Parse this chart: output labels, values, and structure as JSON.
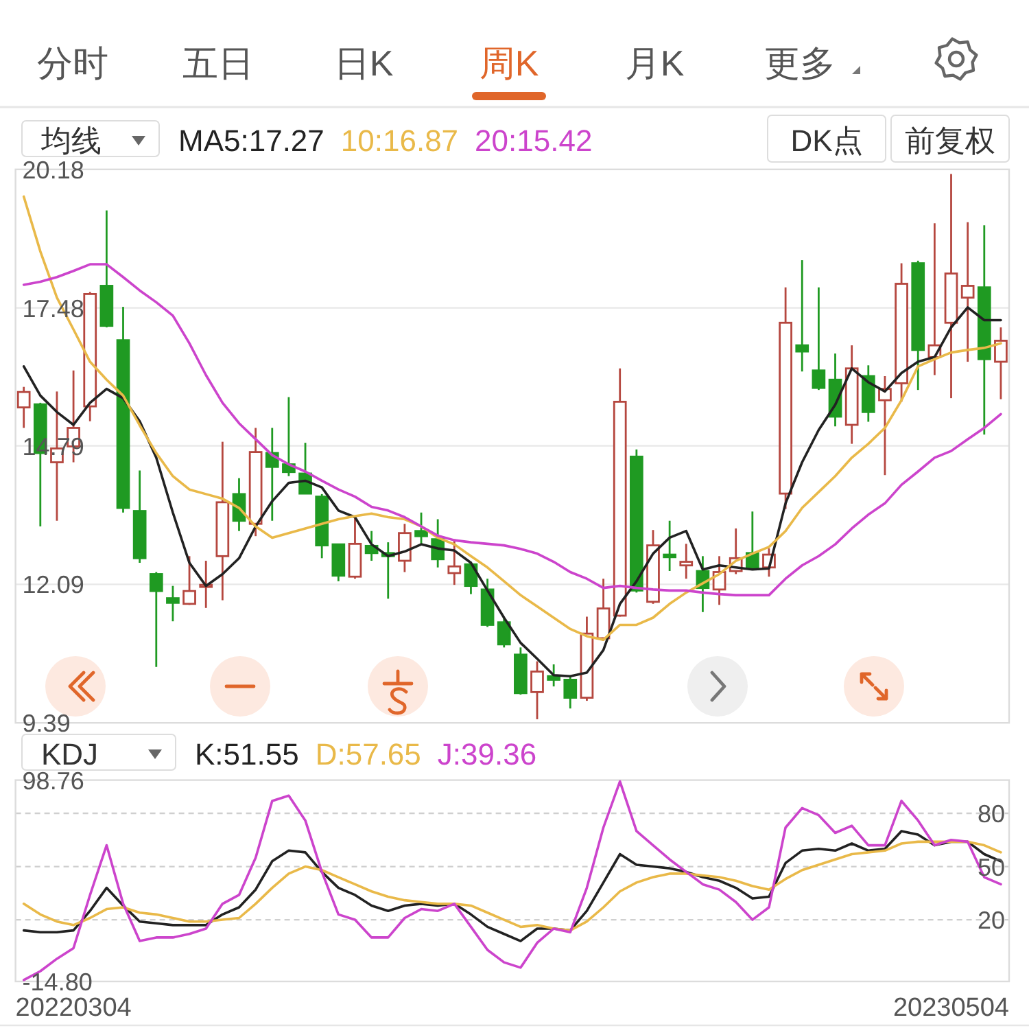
{
  "chart_data": [
    {
      "type": "other",
      "annotations": [
        "分时",
        "五日",
        "日K",
        "周K",
        "月K",
        "更多"
      ]
    },
    {
      "type": "candlestick",
      "legend": "top",
      "legend_title": "均线",
      "tick_labels": "y",
      "grid": "y",
      "annotations": [
        "DK点",
        "前复权"
      ],
      "categories": [
        null,
        null,
        null,
        null,
        null,
        null,
        null,
        null,
        null,
        null,
        null,
        null,
        null,
        null,
        null,
        null,
        null,
        null,
        null,
        null,
        null,
        null,
        null,
        null,
        null,
        null,
        null,
        null,
        null,
        null,
        null,
        null,
        null,
        null,
        null,
        null,
        null,
        null,
        null,
        null,
        null,
        null,
        null,
        null,
        null,
        null,
        null,
        null,
        null,
        null,
        null,
        null,
        null,
        null,
        null,
        null,
        null,
        null,
        null,
        null
      ],
      "ylim": [
        9.39,
        20.18
      ],
      "yticks": [
        20.18,
        17.48,
        14.79,
        12.09,
        9.39
      ],
      "ohlc": [
        [
          15.54,
          15.94,
          15.14,
          15.84
        ],
        [
          15.6,
          15.63,
          13.22,
          14.65
        ],
        [
          14.47,
          15.85,
          13.33,
          14.74
        ],
        [
          14.78,
          16.26,
          14.47,
          15.14
        ],
        [
          15.56,
          17.79,
          15.27,
          17.75
        ],
        [
          17.91,
          19.38,
          17.1,
          17.13
        ],
        [
          16.85,
          17.5,
          13.49,
          13.58
        ],
        [
          13.52,
          14.31,
          12.51,
          12.6
        ],
        [
          12.29,
          12.33,
          10.48,
          11.96
        ],
        [
          11.82,
          12.06,
          11.37,
          11.73
        ],
        [
          11.71,
          12.64,
          11.69,
          11.96
        ],
        [
          12.04,
          12.55,
          11.63,
          12.08
        ],
        [
          12.64,
          14.87,
          11.78,
          13.69
        ],
        [
          13.85,
          14.16,
          13.13,
          13.33
        ],
        [
          13.27,
          15.14,
          13.03,
          14.67
        ],
        [
          14.65,
          15.14,
          13.33,
          14.38
        ],
        [
          14.43,
          15.74,
          14.2,
          14.28
        ],
        [
          14.25,
          14.85,
          13.85,
          13.86
        ],
        [
          13.8,
          13.85,
          12.6,
          12.85
        ],
        [
          12.87,
          12.88,
          12.15,
          12.26
        ],
        [
          12.24,
          13.4,
          12.2,
          12.88
        ],
        [
          12.84,
          13.13,
          12.55,
          12.7
        ],
        [
          12.7,
          12.91,
          11.81,
          12.64
        ],
        [
          12.55,
          13.27,
          12.33,
          13.09
        ],
        [
          13.13,
          13.49,
          12.87,
          13.03
        ],
        [
          12.97,
          13.36,
          12.42,
          12.58
        ],
        [
          12.31,
          12.97,
          12.08,
          12.44
        ],
        [
          12.48,
          12.53,
          11.9,
          12.06
        ],
        [
          11.99,
          12.2,
          11.26,
          11.3
        ],
        [
          11.35,
          11.44,
          10.86,
          10.92
        ],
        [
          10.72,
          10.86,
          9.94,
          9.97
        ],
        [
          9.99,
          10.59,
          9.46,
          10.39
        ],
        [
          10.3,
          10.53,
          10.1,
          10.23
        ],
        [
          10.23,
          10.3,
          9.67,
          9.88
        ],
        [
          9.88,
          11.46,
          9.82,
          11.13
        ],
        [
          11.04,
          12.2,
          10.99,
          11.62
        ],
        [
          11.48,
          16.3,
          11.46,
          15.65
        ],
        [
          14.58,
          14.72,
          11.93,
          11.97
        ],
        [
          11.75,
          13.15,
          11.71,
          12.85
        ],
        [
          12.67,
          13.33,
          12.35,
          12.62
        ],
        [
          12.46,
          12.88,
          12.2,
          12.53
        ],
        [
          12.35,
          12.64,
          11.55,
          12.02
        ],
        [
          11.99,
          12.64,
          11.69,
          12.33
        ],
        [
          12.35,
          13.18,
          12.29,
          12.6
        ],
        [
          12.7,
          13.51,
          12.38,
          12.42
        ],
        [
          12.42,
          12.79,
          12.24,
          12.67
        ],
        [
          13.86,
          17.88,
          13.56,
          17.19
        ],
        [
          16.75,
          18.41,
          16.24,
          16.63
        ],
        [
          16.26,
          17.88,
          15.88,
          15.92
        ],
        [
          16.08,
          16.59,
          15.17,
          15.36
        ],
        [
          15.2,
          16.75,
          14.83,
          16.3
        ],
        [
          16.15,
          16.36,
          15.26,
          15.45
        ],
        [
          15.68,
          16.15,
          14.22,
          15.9
        ],
        [
          16.01,
          18.35,
          15.65,
          17.95
        ],
        [
          18.35,
          18.4,
          15.88,
          16.66
        ],
        [
          16.52,
          19.13,
          16.17,
          16.75
        ],
        [
          17.19,
          20.09,
          15.72,
          18.15
        ],
        [
          17.68,
          19.15,
          16.43,
          17.91
        ],
        [
          17.88,
          19.09,
          15.01,
          16.48
        ],
        [
          16.43,
          17.1,
          15.7,
          16.84
        ]
      ],
      "series": [
        {
          "name": "MA5:17.27",
          "type": "line",
          "color": "#222222",
          "values": [
            16.34,
            15.77,
            15.45,
            15.2,
            15.63,
            15.9,
            15.72,
            15.27,
            14.56,
            13.49,
            12.51,
            12.06,
            12.29,
            12.6,
            13.22,
            13.71,
            14.07,
            14.11,
            13.98,
            13.53,
            13.4,
            12.87,
            12.64,
            12.73,
            12.87,
            12.79,
            12.75,
            12.51,
            11.97,
            11.44,
            10.95,
            10.64,
            10.32,
            10.3,
            10.37,
            10.81,
            11.71,
            12.15,
            12.69,
            13.0,
            13.13,
            12.38,
            12.46,
            12.42,
            12.38,
            12.4,
            13.67,
            14.47,
            15.1,
            15.59,
            16.3,
            16.03,
            15.85,
            16.21,
            16.43,
            16.52,
            17.1,
            17.49,
            17.24,
            17.24
          ]
        },
        {
          "name": "10:16.87",
          "type": "line",
          "color": "#e9b949",
          "values": [
            19.65,
            18.58,
            17.68,
            17.06,
            16.43,
            16.08,
            15.77,
            15.19,
            14.65,
            14.2,
            13.94,
            13.85,
            13.76,
            13.58,
            13.22,
            13.0,
            13.09,
            13.18,
            13.27,
            13.36,
            13.42,
            13.47,
            13.4,
            13.36,
            13.22,
            13.0,
            12.87,
            12.64,
            12.42,
            12.15,
            11.88,
            11.66,
            11.44,
            11.22,
            11.08,
            11.01,
            11.3,
            11.3,
            11.44,
            11.71,
            11.93,
            12.11,
            12.29,
            12.55,
            12.69,
            12.82,
            13.13,
            13.58,
            13.89,
            14.2,
            14.56,
            14.83,
            15.14,
            15.68,
            16.34,
            16.48,
            16.61,
            16.66,
            16.7,
            16.79
          ]
        },
        {
          "name": "20:15.42",
          "type": "line",
          "color": "#cc44cc",
          "values": [
            17.93,
            17.99,
            18.08,
            18.2,
            18.33,
            18.33,
            18.08,
            17.82,
            17.59,
            17.33,
            16.79,
            16.17,
            15.63,
            15.23,
            14.92,
            14.61,
            14.43,
            14.29,
            14.11,
            13.94,
            13.8,
            13.6,
            13.53,
            13.4,
            13.22,
            13.04,
            12.95,
            12.91,
            12.88,
            12.85,
            12.78,
            12.69,
            12.53,
            12.33,
            12.2,
            12.02,
            12.06,
            12.02,
            11.99,
            11.97,
            11.97,
            11.93,
            11.9,
            11.88,
            11.88,
            11.88,
            12.2,
            12.46,
            12.64,
            12.87,
            13.18,
            13.45,
            13.67,
            14.03,
            14.29,
            14.56,
            14.69,
            14.92,
            15.14,
            15.41
          ]
        }
      ]
    },
    {
      "type": "line",
      "legend": "top",
      "legend_title": "KDJ",
      "grid": "y",
      "line_style": "solid",
      "tick_labels": "y",
      "annotations": [
        "20220304",
        "20230504"
      ],
      "categories": [
        null,
        null,
        null,
        null,
        null,
        null,
        null,
        null,
        null,
        null,
        null,
        null,
        null,
        null,
        null,
        null,
        null,
        null,
        null,
        null,
        null,
        null,
        null,
        null,
        null,
        null,
        null,
        null,
        null,
        null,
        null,
        null,
        null,
        null,
        null,
        null,
        null,
        null,
        null,
        null,
        null,
        null,
        null,
        null,
        null,
        null,
        null,
        null,
        null,
        null,
        null,
        null,
        null,
        null,
        null,
        null,
        null,
        null,
        null,
        null
      ],
      "ylim": [
        -14.8,
        98.76
      ],
      "yticks": [
        98.76,
        {
          "value": -14.8,
          "label": "-14.80"
        }
      ],
      "y2lim": [
        -14.8,
        98.76
      ],
      "y2ticks": [
        80,
        50,
        20
      ],
      "series": [
        {
          "name": "K:51.55",
          "color": "#222222",
          "values": [
            14,
            13,
            13,
            14,
            25,
            38,
            28,
            19,
            18,
            17,
            17,
            17,
            23,
            27,
            37,
            53,
            59,
            58,
            47,
            38,
            34,
            28,
            25,
            28,
            29,
            28,
            29,
            23,
            16,
            12,
            8,
            15,
            15,
            14,
            25,
            41,
            57,
            51,
            50,
            49,
            47,
            44,
            42,
            38,
            32,
            33,
            52,
            59,
            60,
            59,
            63,
            59,
            60,
            70,
            68,
            62,
            64,
            64,
            57,
            53
          ]
        },
        {
          "name": "D:57.65",
          "color": "#e9b949",
          "values": [
            29,
            23,
            19,
            17,
            21,
            26,
            27,
            24,
            23,
            21,
            19,
            19,
            20,
            21,
            29,
            38,
            46,
            50,
            48,
            44,
            40,
            36,
            33,
            31,
            30,
            29,
            29,
            28,
            24,
            20,
            16,
            17,
            15,
            14,
            19,
            27,
            36,
            41,
            44,
            46,
            46,
            45,
            44,
            42,
            39,
            37,
            43,
            48,
            51,
            54,
            57,
            58,
            59,
            63,
            64,
            64,
            64,
            64,
            62,
            58
          ]
        },
        {
          "name": "J:39.36",
          "color": "#cc44cc",
          "values": [
            -14,
            -9,
            -2,
            4,
            34,
            62,
            29,
            8,
            10,
            10,
            12,
            15,
            29,
            34,
            55,
            87,
            90,
            76,
            47,
            23,
            20,
            10,
            10,
            21,
            26,
            25,
            29,
            16,
            3,
            -4,
            -7,
            7,
            15,
            13,
            38,
            72,
            98,
            70,
            62,
            54,
            47,
            40,
            37,
            30,
            20,
            27,
            72,
            83,
            79,
            69,
            73,
            62,
            62,
            87,
            76,
            62,
            65,
            64,
            44,
            40
          ]
        }
      ]
    }
  ]
}
